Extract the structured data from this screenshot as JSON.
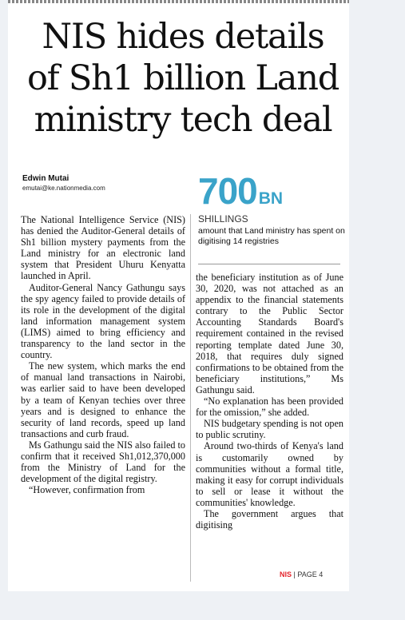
{
  "headline": {
    "line1": "NIS hides details",
    "line2": "of Sh1 billion Land",
    "line3": "ministry tech deal"
  },
  "byline": {
    "name": "Edwin Mutai",
    "email": "emutai@ke.nationmedia.com"
  },
  "stat": {
    "number": "700",
    "unit": "BN",
    "currency": "SHILLINGS",
    "description": "amount that Land ministry has spent on digitising 14 registries",
    "number_color": "#3aa3c9"
  },
  "body": {
    "col1": [
      "The National Intelligence Service (NIS) has denied the Auditor-General details of Sh1 billion mystery payments from the Land ministry for an electronic land system that President Uhuru Kenyatta launched in April.",
      "Auditor-General Nancy Gathungu says the spy agency failed to provide details of its role in the development of the digital land information management system (LIMS) aimed to bring efficiency and transparency to the land sector in the country.",
      "The new system, which marks the end of manual land transactions in Nairobi, was earlier said to have been developed by a team of Kenyan techies over three years and is designed to enhance the security of land records, speed up land transactions and curb fraud.",
      "Ms Gathungu said the NIS also failed to confirm that it received Sh1,012,370,000 from the Ministry of Land for the development of the digital registry.",
      "“However, confirmation from"
    ],
    "col2": [
      "the beneficiary institution as of June 30, 2020, was not attached as an appendix to the financial statements contrary to the Public Sector Accounting Standards Board's requirement contained in the revised reporting template dated June 30, 2018, that requires duly signed confirmations to be obtained from the beneficiary institutions,” Ms Gathungu said.",
      "“No explanation has been provided for the omission,” she added.",
      "NIS budgetary spending is not open to public scrutiny.",
      "Around two-thirds of Kenya's land is customarily owned by communities without a formal title, making it easy for corrupt individuals to sell or lease it without the communities' knowledge.",
      "The government argues that digitising"
    ]
  },
  "continuation": {
    "tag": "NIS",
    "separator": "|",
    "page": "PAGE 4",
    "tag_color": "#e4242b"
  }
}
